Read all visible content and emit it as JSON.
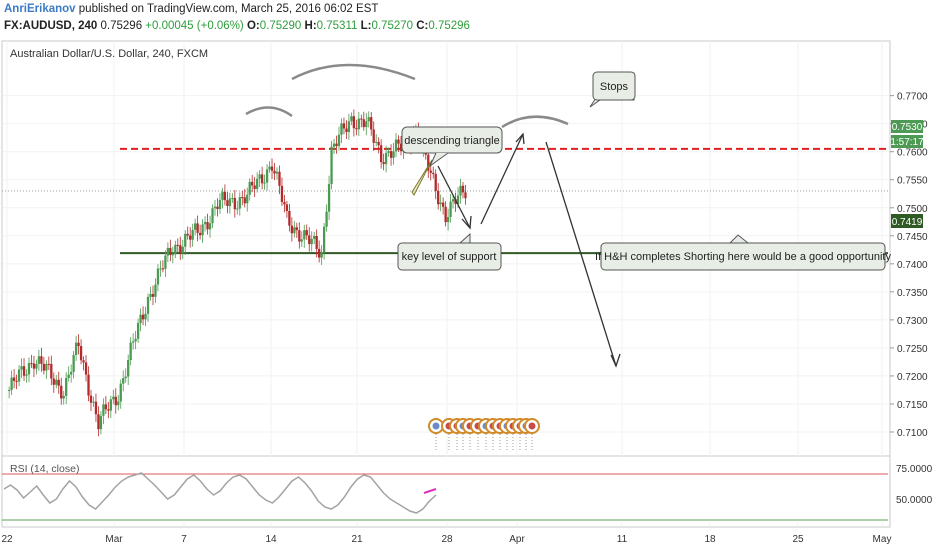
{
  "header": {
    "author": "AnriErikanov",
    "published": "published on TradingView.com, March 25, 2016 06:02 EST",
    "symbol": "FX:AUDUSD, 240",
    "last": "0.75296",
    "change": "+0.00045 (+0.06%)",
    "o_label": "O:",
    "o_val": "0.75290",
    "h_label": "H:",
    "h_val": "0.75311",
    "l_label": "L:",
    "l_val": "0.75270",
    "c_label": "C:",
    "c_val": "0.75296"
  },
  "chart_title": "Australian Dollar/U.S. Dollar, 240, FXCM",
  "colors": {
    "up": "#4a9a52",
    "down": "#b32a2a",
    "stop_line": "#e02020",
    "support_line": "#2f5a24",
    "rsi_line": "#a3a3a3",
    "rsi_band": "#e05a5a",
    "callout_bg": "#e8eee6"
  },
  "price_tags": {
    "current": "0.7530",
    "countdown": "1:57:17",
    "support": "0.7419"
  },
  "annotations": {
    "stops": "Stops",
    "descending_triangle": "descending triangle",
    "key_level": "key level of  support",
    "hh": "If H&H completes Shorting here would be a good opportunity"
  },
  "rsi": {
    "label": "RSI (14, close)",
    "ticks": [
      "75.0000",
      "50.0000"
    ]
  },
  "chart_data": {
    "type": "candlestick",
    "title": "Australian Dollar/U.S. Dollar, 240, FXCM",
    "ylim": [
      0.7075,
      0.7785
    ],
    "y_ticks": [
      "0.7700",
      "0.7650",
      "0.7600",
      "0.7550",
      "0.7500",
      "0.7450",
      "0.7400",
      "0.7350",
      "0.7300",
      "0.7250",
      "0.7200",
      "0.7150",
      "0.7100"
    ],
    "x_ticks": [
      "22",
      "Mar",
      "7",
      "14",
      "21",
      "28",
      "Apr",
      "11",
      "18",
      "25",
      "May"
    ],
    "levels": {
      "stops": 0.7605,
      "support": 0.7419,
      "current": 0.753
    },
    "waypoints": [
      {
        "bar": 0,
        "price": 0.7175
      },
      {
        "bar": 10,
        "price": 0.7232
      },
      {
        "bar": 22,
        "price": 0.7175
      },
      {
        "bar": 28,
        "price": 0.7252
      },
      {
        "bar": 36,
        "price": 0.7115
      },
      {
        "bar": 44,
        "price": 0.717
      },
      {
        "bar": 56,
        "price": 0.734
      },
      {
        "bar": 66,
        "price": 0.743
      },
      {
        "bar": 76,
        "price": 0.7455
      },
      {
        "bar": 84,
        "price": 0.7505
      },
      {
        "bar": 96,
        "price": 0.752
      },
      {
        "bar": 106,
        "price": 0.758
      },
      {
        "bar": 112,
        "price": 0.748
      },
      {
        "bar": 120,
        "price": 0.7442
      },
      {
        "bar": 126,
        "price": 0.7421
      },
      {
        "bar": 130,
        "price": 0.76
      },
      {
        "bar": 138,
        "price": 0.766
      },
      {
        "bar": 144,
        "price": 0.765
      },
      {
        "bar": 150,
        "price": 0.7595
      },
      {
        "bar": 158,
        "price": 0.7605
      },
      {
        "bar": 164,
        "price": 0.764
      },
      {
        "bar": 170,
        "price": 0.7555
      },
      {
        "bar": 176,
        "price": 0.749
      },
      {
        "bar": 184,
        "price": 0.753
      }
    ],
    "rsi_values": [
      58,
      62,
      57,
      49,
      55,
      61,
      52,
      44,
      48,
      58,
      66,
      60,
      50,
      42,
      38,
      45,
      52,
      60,
      66,
      70,
      72,
      74,
      68,
      62,
      55,
      48,
      52,
      60,
      68,
      72,
      66,
      58,
      52,
      56,
      64,
      70,
      72,
      68,
      60,
      52,
      47,
      44,
      50,
      58,
      66,
      70,
      64,
      56,
      46,
      40,
      38,
      42,
      50,
      60,
      68,
      72,
      70,
      62,
      54,
      48,
      44,
      40,
      36,
      34,
      38,
      46,
      52
    ],
    "rsi_ylim": [
      25,
      85
    ]
  }
}
